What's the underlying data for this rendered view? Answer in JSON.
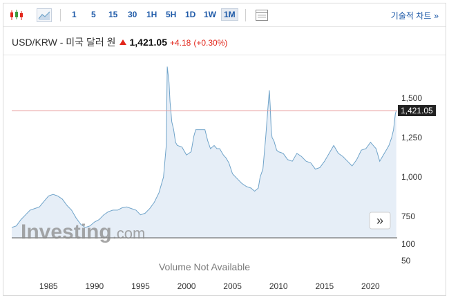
{
  "toolbar": {
    "icons": [
      "candlestick-icon",
      "area-chart-icon",
      "table-icon"
    ],
    "timeframes": [
      "1",
      "5",
      "15",
      "30",
      "1H",
      "5H",
      "1D",
      "1W",
      "1M"
    ],
    "active_timeframe": "1M",
    "technical_chart_label": "기술적 차트",
    "technical_chart_chevron": "»"
  },
  "header": {
    "instrument": "USD/KRW - 미국 달러 원",
    "price": "1,421.05",
    "change": "+4.18",
    "change_pct": "(+0.30%)",
    "change_color": "#e2271c"
  },
  "overlay": {
    "watermark_brand": "Investing",
    "watermark_domain": ".com",
    "volume_text": "Volume Not Available",
    "scroll_button": "»"
  },
  "chart_data": {
    "type": "area",
    "title": "",
    "xlabel": "",
    "ylabel": "",
    "x_ticks": [
      "1985",
      "1990",
      "1995",
      "2000",
      "2005",
      "2010",
      "2015",
      "2020"
    ],
    "y_ticks": [
      "1,500",
      "1,250",
      "1,000",
      "750"
    ],
    "volume_ticks": [
      "100",
      "50"
    ],
    "last_price_label": "1,421.05",
    "last_price": 1421.05,
    "line_color": "#6fa3c9",
    "fill_color": "#e6eef7",
    "price_line_color": "#e8a0a0",
    "grid": false,
    "series": [
      {
        "x": [
          1981.0,
          1981.5,
          1982.0,
          1982.5,
          1983.0,
          1983.5,
          1984.0,
          1984.5,
          1985.0,
          1985.5,
          1986.0,
          1986.5,
          1987.0,
          1987.5,
          1988.0,
          1988.5,
          1989.0,
          1989.5,
          1990.0,
          1990.5,
          1991.0,
          1991.5,
          1992.0,
          1992.5,
          1993.0,
          1993.5,
          1994.0,
          1994.5,
          1995.0,
          1995.5,
          1996.0,
          1996.5,
          1997.0,
          1997.5,
          1997.8,
          1997.9,
          1998.0,
          1998.1,
          1998.2,
          1998.4,
          1998.6,
          1998.8,
          1999.0,
          1999.5,
          2000.0,
          2000.5,
          2000.8,
          2001.0,
          2001.3,
          2001.6,
          2002.0,
          2002.3,
          2002.6,
          2003.0,
          2003.3,
          2003.6,
          2004.0,
          2004.3,
          2004.6,
          2005.0,
          2005.5,
          2006.0,
          2006.5,
          2007.0,
          2007.4,
          2007.8,
          2008.0,
          2008.3,
          2008.6,
          2008.8,
          2009.0,
          2009.1,
          2009.2,
          2009.3,
          2009.5,
          2009.8,
          2010.0,
          2010.5,
          2011.0,
          2011.5,
          2012.0,
          2012.5,
          2013.0,
          2013.5,
          2014.0,
          2014.5,
          2015.0,
          2015.5,
          2016.0,
          2016.5,
          2017.0,
          2017.5,
          2018.0,
          2018.5,
          2019.0,
          2019.5,
          2020.0,
          2020.3,
          2020.6,
          2021.0,
          2021.5,
          2021.8,
          2022.0,
          2022.3,
          2022.5,
          2022.7,
          2022.8
        ],
        "values": [
          680,
          690,
          730,
          760,
          790,
          800,
          810,
          845,
          880,
          890,
          880,
          860,
          820,
          790,
          740,
          700,
          680,
          690,
          715,
          730,
          760,
          780,
          790,
          790,
          805,
          810,
          800,
          790,
          760,
          770,
          800,
          840,
          900,
          1000,
          1200,
          1700,
          1650,
          1600,
          1480,
          1350,
          1300,
          1220,
          1200,
          1190,
          1140,
          1160,
          1260,
          1300,
          1300,
          1300,
          1300,
          1230,
          1180,
          1200,
          1180,
          1180,
          1140,
          1120,
          1090,
          1020,
          990,
          960,
          940,
          930,
          910,
          930,
          1000,
          1050,
          1250,
          1400,
          1550,
          1450,
          1300,
          1250,
          1230,
          1170,
          1160,
          1150,
          1110,
          1100,
          1150,
          1130,
          1100,
          1090,
          1050,
          1060,
          1100,
          1150,
          1200,
          1150,
          1130,
          1100,
          1070,
          1110,
          1170,
          1180,
          1220,
          1200,
          1180,
          1100,
          1150,
          1180,
          1200,
          1250,
          1300,
          1400,
          1421.05
        ]
      }
    ]
  }
}
